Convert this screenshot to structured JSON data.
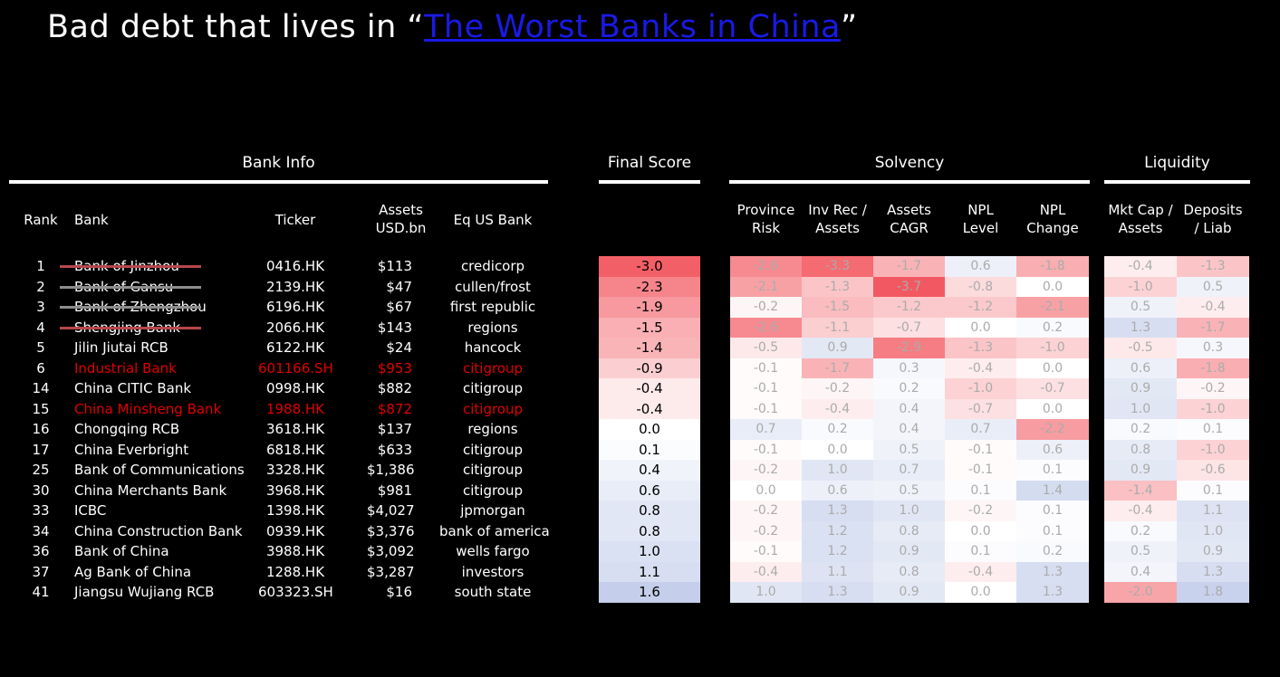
{
  "title": {
    "prefix": "Bad debt that lives in “",
    "link": "The Worst Banks in China",
    "suffix": "”"
  },
  "sections": {
    "bank_info": "Bank Info",
    "final_score": "Final Score",
    "solvency": "Solvency",
    "liquidity": "Liquidity"
  },
  "columns": {
    "rank": "Rank",
    "bank": "Bank",
    "ticker": "Ticker",
    "assets": [
      "Assets",
      "USD.bn"
    ],
    "eq_us_bank": "Eq US Bank",
    "province_risk": [
      "Province",
      "Risk"
    ],
    "inv_rec_assets": [
      "Inv Rec /",
      "Assets"
    ],
    "assets_cagr": [
      "Assets",
      "CAGR"
    ],
    "npl_level": [
      "NPL",
      "Level"
    ],
    "npl_change": [
      "NPL",
      "Change"
    ],
    "mkt_cap_assets": [
      "Mkt Cap /",
      "Assets"
    ],
    "deposits_liab": [
      "Deposits",
      "/ Liab"
    ]
  },
  "colors": {
    "highlight_red": "#e00000",
    "link_blue": "#1a1ae6",
    "heat_negative": "#f2545d",
    "heat_positive": "#8a9fd6",
    "strike_red": "#b8474b",
    "strike_gray": "#8d8d8d"
  },
  "rows": [
    {
      "rank": "1",
      "bank": "Bank of Jinzhou",
      "ticker": "0416.HK",
      "assets": "$113",
      "eq": "credicorp",
      "score": "-3.0",
      "pr": "-2.6",
      "ir": "-3.3",
      "ac": "-1.7",
      "nl": "0.6",
      "nc": "-1.8",
      "mc": "-0.4",
      "dl": "-1.3",
      "highlight": false,
      "strike": "red"
    },
    {
      "rank": "2",
      "bank": "Bank of Gansu",
      "ticker": "2139.HK",
      "assets": "$47",
      "eq": "cullen/frost",
      "score": "-2.3",
      "pr": "-2.1",
      "ir": "-1.3",
      "ac": "-3.7",
      "nl": "-0.8",
      "nc": "0.0",
      "mc": "-1.0",
      "dl": "0.5",
      "highlight": false,
      "strike": "gray"
    },
    {
      "rank": "3",
      "bank": "Bank of Zhengzhou",
      "ticker": "6196.HK",
      "assets": "$67",
      "eq": "first republic",
      "score": "-1.9",
      "pr": "-0.2",
      "ir": "-1.5",
      "ac": "-1.2",
      "nl": "-1.2",
      "nc": "-2.1",
      "mc": "0.5",
      "dl": "-0.4",
      "highlight": false,
      "strike": "gray"
    },
    {
      "rank": "4",
      "bank": "Shengjing Bank",
      "ticker": "2066.HK",
      "assets": "$143",
      "eq": "regions",
      "score": "-1.5",
      "pr": "-2.6",
      "ir": "-1.1",
      "ac": "-0.7",
      "nl": "0.0",
      "nc": "0.2",
      "mc": "1.3",
      "dl": "-1.7",
      "highlight": false,
      "strike": "red"
    },
    {
      "rank": "5",
      "bank": "Jilin Jiutai RCB",
      "ticker": "6122.HK",
      "assets": "$24",
      "eq": "hancock",
      "score": "-1.4",
      "pr": "-0.5",
      "ir": "0.9",
      "ac": "-2.9",
      "nl": "-1.3",
      "nc": "-1.0",
      "mc": "-0.5",
      "dl": "0.3",
      "highlight": false,
      "strike": ""
    },
    {
      "rank": "6",
      "bank": "Industrial Bank",
      "ticker": "601166.SH",
      "assets": "$953",
      "eq": "citigroup",
      "score": "-0.9",
      "pr": "-0.1",
      "ir": "-1.7",
      "ac": "0.3",
      "nl": "-0.4",
      "nc": "0.0",
      "mc": "0.6",
      "dl": "-1.8",
      "highlight": true,
      "strike": ""
    },
    {
      "rank": "14",
      "bank": "China CITIC Bank",
      "ticker": "0998.HK",
      "assets": "$882",
      "eq": "citigroup",
      "score": "-0.4",
      "pr": "-0.1",
      "ir": "-0.2",
      "ac": "0.2",
      "nl": "-1.0",
      "nc": "-0.7",
      "mc": "0.9",
      "dl": "-0.2",
      "highlight": false,
      "strike": ""
    },
    {
      "rank": "15",
      "bank": "China Minsheng Bank",
      "ticker": "1988.HK",
      "assets": "$872",
      "eq": "citigroup",
      "score": "-0.4",
      "pr": "-0.1",
      "ir": "-0.4",
      "ac": "0.4",
      "nl": "-0.7",
      "nc": "0.0",
      "mc": "1.0",
      "dl": "-1.0",
      "highlight": true,
      "strike": ""
    },
    {
      "rank": "16",
      "bank": "Chongqing RCB",
      "ticker": "3618.HK",
      "assets": "$137",
      "eq": "regions",
      "score": "0.0",
      "pr": "0.7",
      "ir": "0.2",
      "ac": "0.4",
      "nl": "0.7",
      "nc": "-2.2",
      "mc": "0.2",
      "dl": "0.1",
      "highlight": false,
      "strike": ""
    },
    {
      "rank": "17",
      "bank": "China Everbright",
      "ticker": "6818.HK",
      "assets": "$633",
      "eq": "citigroup",
      "score": "0.1",
      "pr": "-0.1",
      "ir": "0.0",
      "ac": "0.5",
      "nl": "-0.1",
      "nc": "0.6",
      "mc": "0.8",
      "dl": "-1.0",
      "highlight": false,
      "strike": ""
    },
    {
      "rank": "25",
      "bank": "Bank of Communications",
      "ticker": "3328.HK",
      "assets": "$1,386",
      "eq": "citigroup",
      "score": "0.4",
      "pr": "-0.2",
      "ir": "1.0",
      "ac": "0.7",
      "nl": "-0.1",
      "nc": "0.1",
      "mc": "0.9",
      "dl": "-0.6",
      "highlight": false,
      "strike": ""
    },
    {
      "rank": "30",
      "bank": "China Merchants Bank",
      "ticker": "3968.HK",
      "assets": "$981",
      "eq": "citigroup",
      "score": "0.6",
      "pr": "0.0",
      "ir": "0.6",
      "ac": "0.5",
      "nl": "0.1",
      "nc": "1.4",
      "mc": "-1.4",
      "dl": "0.1",
      "highlight": false,
      "strike": ""
    },
    {
      "rank": "33",
      "bank": "ICBC",
      "ticker": "1398.HK",
      "assets": "$4,027",
      "eq": "jpmorgan",
      "score": "0.8",
      "pr": "-0.2",
      "ir": "1.3",
      "ac": "1.0",
      "nl": "-0.2",
      "nc": "0.1",
      "mc": "-0.4",
      "dl": "1.1",
      "highlight": false,
      "strike": ""
    },
    {
      "rank": "34",
      "bank": "China Construction Bank",
      "ticker": "0939.HK",
      "assets": "$3,376",
      "eq": "bank of america",
      "score": "0.8",
      "pr": "-0.2",
      "ir": "1.2",
      "ac": "0.8",
      "nl": "0.0",
      "nc": "0.1",
      "mc": "0.2",
      "dl": "1.0",
      "highlight": false,
      "strike": ""
    },
    {
      "rank": "36",
      "bank": "Bank of China",
      "ticker": "3988.HK",
      "assets": "$3,092",
      "eq": "wells fargo",
      "score": "1.0",
      "pr": "-0.1",
      "ir": "1.2",
      "ac": "0.9",
      "nl": "0.1",
      "nc": "0.2",
      "mc": "0.5",
      "dl": "0.9",
      "highlight": false,
      "strike": ""
    },
    {
      "rank": "37",
      "bank": "Ag Bank of China",
      "ticker": "1288.HK",
      "assets": "$3,287",
      "eq": "investors",
      "score": "1.1",
      "pr": "-0.4",
      "ir": "1.1",
      "ac": "0.8",
      "nl": "-0.4",
      "nc": "1.3",
      "mc": "0.4",
      "dl": "1.3",
      "highlight": false,
      "strike": ""
    },
    {
      "rank": "41",
      "bank": "Jiangsu Wujiang RCB",
      "ticker": "603323.SH",
      "assets": "$16",
      "eq": "south state",
      "score": "1.6",
      "pr": "1.0",
      "ir": "1.3",
      "ac": "0.9",
      "nl": "0.0",
      "nc": "1.3",
      "mc": "-2.0",
      "dl": "1.8",
      "highlight": false,
      "strike": ""
    }
  ]
}
